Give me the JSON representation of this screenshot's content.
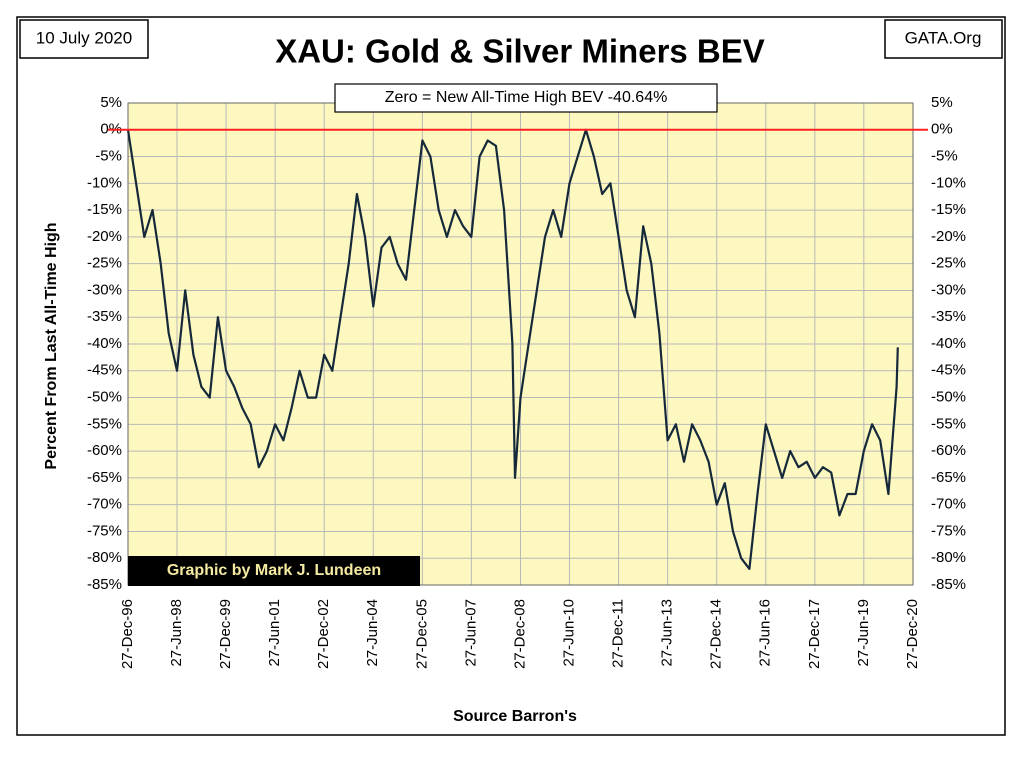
{
  "chart_data": {
    "type": "line",
    "title": "XAU: Gold & Silver Miners BEV",
    "date_label": "10 July 2020",
    "source_site": "GATA.Org",
    "annotation": "Zero = New All-Time High BEV -40.64%",
    "credit": "Graphic by Mark J. Lundeen",
    "y_label": "Percent  From  Last  All-Time  High",
    "x_label": "Source Barron's",
    "color": "#15293a",
    "background": "#fdf8c0",
    "grid": true,
    "reference_line": {
      "value": 0,
      "color": "#ff2020"
    },
    "xlim": [
      "1996-12-27",
      "2020-12-27"
    ],
    "xticks": [
      {
        "value": "1996-12-27",
        "label": "27-Dec-96"
      },
      {
        "value": "1998-06-27",
        "label": "27-Jun-98"
      },
      {
        "value": "1999-12-27",
        "label": "27-Dec-99"
      },
      {
        "value": "2001-06-27",
        "label": "27-Jun-01"
      },
      {
        "value": "2002-12-27",
        "label": "27-Dec-02"
      },
      {
        "value": "2004-06-27",
        "label": "27-Jun-04"
      },
      {
        "value": "2005-12-27",
        "label": "27-Dec-05"
      },
      {
        "value": "2007-06-27",
        "label": "27-Jun-07"
      },
      {
        "value": "2008-12-27",
        "label": "27-Dec-08"
      },
      {
        "value": "2010-06-27",
        "label": "27-Jun-10"
      },
      {
        "value": "2011-12-27",
        "label": "27-Dec-11"
      },
      {
        "value": "2013-06-27",
        "label": "27-Jun-13"
      },
      {
        "value": "2014-12-27",
        "label": "27-Dec-14"
      },
      {
        "value": "2016-06-27",
        "label": "27-Jun-16"
      },
      {
        "value": "2017-12-27",
        "label": "27-Dec-17"
      },
      {
        "value": "2019-06-27",
        "label": "27-Jun-19"
      },
      {
        "value": "2020-12-27",
        "label": "27-Dec-20"
      }
    ],
    "ylim": [
      -85,
      5
    ],
    "yticks": [
      {
        "value": 5,
        "label": "5%"
      },
      {
        "value": 0,
        "label": "0%"
      },
      {
        "value": -5,
        "label": "-5%"
      },
      {
        "value": -10,
        "label": "-10%"
      },
      {
        "value": -15,
        "label": "-15%"
      },
      {
        "value": -20,
        "label": "-20%"
      },
      {
        "value": -25,
        "label": "-25%"
      },
      {
        "value": -30,
        "label": "-30%"
      },
      {
        "value": -35,
        "label": "-35%"
      },
      {
        "value": -40,
        "label": "-40%"
      },
      {
        "value": -45,
        "label": "-45%"
      },
      {
        "value": -50,
        "label": "-50%"
      },
      {
        "value": -55,
        "label": "-55%"
      },
      {
        "value": -60,
        "label": "-60%"
      },
      {
        "value": -65,
        "label": "-65%"
      },
      {
        "value": -70,
        "label": "-70%"
      },
      {
        "value": -75,
        "label": "-75%"
      },
      {
        "value": -80,
        "label": "-80%"
      },
      {
        "value": -85,
        "label": "-85%"
      }
    ],
    "x": [
      "1996-12-27",
      "1997-03-27",
      "1997-06-27",
      "1997-09-27",
      "1997-12-27",
      "1998-03-27",
      "1998-06-27",
      "1998-09-27",
      "1998-12-27",
      "1999-03-27",
      "1999-06-27",
      "1999-09-27",
      "1999-12-27",
      "2000-03-27",
      "2000-06-27",
      "2000-09-27",
      "2000-12-27",
      "2001-03-27",
      "2001-06-27",
      "2001-09-27",
      "2001-12-27",
      "2002-03-27",
      "2002-06-27",
      "2002-09-27",
      "2002-12-27",
      "2003-03-27",
      "2003-06-27",
      "2003-09-27",
      "2003-12-27",
      "2004-03-27",
      "2004-06-27",
      "2004-09-27",
      "2004-12-27",
      "2005-03-27",
      "2005-06-27",
      "2005-09-27",
      "2005-12-27",
      "2006-03-27",
      "2006-06-27",
      "2006-09-27",
      "2006-12-27",
      "2007-03-27",
      "2007-06-27",
      "2007-09-27",
      "2007-12-27",
      "2008-03-27",
      "2008-06-27",
      "2008-09-27",
      "2008-10-27",
      "2008-12-27",
      "2009-03-27",
      "2009-06-27",
      "2009-09-27",
      "2009-12-27",
      "2010-03-27",
      "2010-06-27",
      "2010-09-27",
      "2010-12-27",
      "2011-03-27",
      "2011-06-27",
      "2011-09-27",
      "2011-12-27",
      "2012-03-27",
      "2012-06-27",
      "2012-09-27",
      "2012-12-27",
      "2013-03-27",
      "2013-06-27",
      "2013-09-27",
      "2013-12-27",
      "2014-03-27",
      "2014-06-27",
      "2014-09-27",
      "2014-12-27",
      "2015-03-27",
      "2015-06-27",
      "2015-09-27",
      "2015-12-27",
      "2016-03-27",
      "2016-06-27",
      "2016-09-27",
      "2016-12-27",
      "2017-03-27",
      "2017-06-27",
      "2017-09-27",
      "2017-12-27",
      "2018-03-27",
      "2018-06-27",
      "2018-09-27",
      "2018-12-27",
      "2019-03-27",
      "2019-06-27",
      "2019-09-27",
      "2019-12-27",
      "2020-03-27",
      "2020-06-27",
      "2020-07-10"
    ],
    "values": [
      0,
      -10,
      -20,
      -15,
      -25,
      -38,
      -45,
      -30,
      -42,
      -48,
      -50,
      -35,
      -45,
      -48,
      -52,
      -55,
      -63,
      -60,
      -55,
      -58,
      -52,
      -45,
      -50,
      -50,
      -42,
      -45,
      -35,
      -25,
      -12,
      -20,
      -33,
      -22,
      -20,
      -25,
      -28,
      -15,
      -2,
      -5,
      -15,
      -20,
      -15,
      -18,
      -20,
      -5,
      -2,
      -3,
      -15,
      -40,
      -65,
      -50,
      -40,
      -30,
      -20,
      -15,
      -20,
      -10,
      -5,
      0,
      -5,
      -12,
      -10,
      -20,
      -30,
      -35,
      -18,
      -25,
      -38,
      -58,
      -55,
      -62,
      -55,
      -58,
      -62,
      -70,
      -66,
      -75,
      -80,
      -82,
      -68,
      -55,
      -60,
      -65,
      -60,
      -63,
      -62,
      -65,
      -63,
      -64,
      -72,
      -68,
      -68,
      -60,
      -55,
      -58,
      -68,
      -48,
      -40.64
    ]
  }
}
